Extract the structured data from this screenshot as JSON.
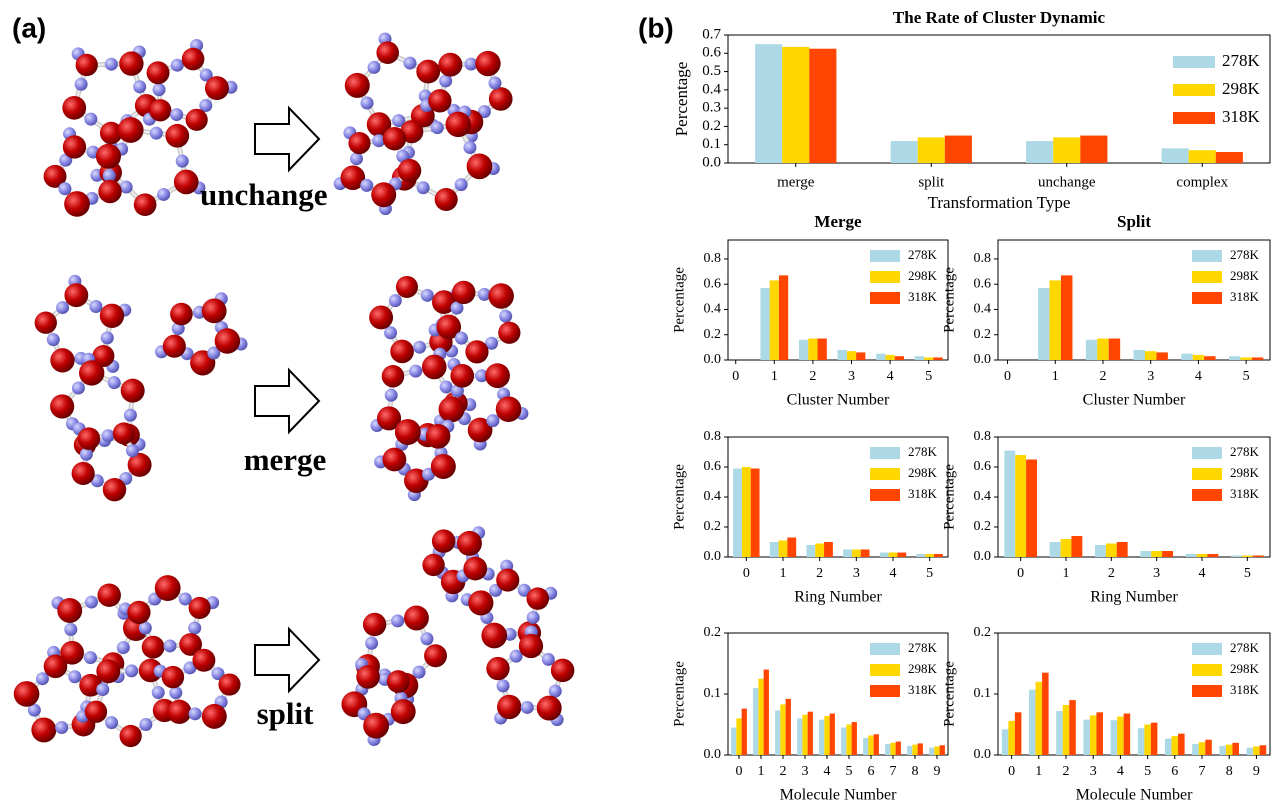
{
  "panel_a": {
    "label": "(a)",
    "transitions": [
      "unchange",
      "merge",
      "split"
    ]
  },
  "panel_b_label": "(b)",
  "chart_data": [
    {
      "type": "bar",
      "title": "The Rate of Cluster Dynamic",
      "xlabel": "Transformation Type",
      "ylabel": "Percentage",
      "categories": [
        "merge",
        "split",
        "unchange",
        "complex"
      ],
      "series": [
        {
          "name": "278K",
          "color": "#add8e6",
          "values": [
            0.65,
            0.12,
            0.12,
            0.08
          ]
        },
        {
          "name": "298K",
          "color": "#ffd700",
          "values": [
            0.635,
            0.14,
            0.14,
            0.07
          ]
        },
        {
          "name": "318K",
          "color": "#ff4500",
          "values": [
            0.625,
            0.15,
            0.15,
            0.06
          ]
        }
      ],
      "ylim": [
        0,
        0.7
      ],
      "yticks": [
        {
          "value": 0,
          "label": "0.0"
        },
        0.1,
        0.2,
        0.3,
        0.4,
        0.5,
        0.6,
        0.7
      ],
      "legend": "upper right"
    },
    {
      "type": "bar",
      "title": "Merge",
      "xlabel": "Cluster Number",
      "ylabel": "Percentage",
      "x": [
        1,
        2,
        3,
        4,
        5
      ],
      "series": [
        {
          "name": "278K",
          "color": "#add8e6",
          "values": [
            0.57,
            0.16,
            0.08,
            0.05,
            0.03
          ]
        },
        {
          "name": "298K",
          "color": "#ffd700",
          "values": [
            0.63,
            0.17,
            0.07,
            0.04,
            0.02
          ]
        },
        {
          "name": "318K",
          "color": "#ff4500",
          "values": [
            0.67,
            0.17,
            0.06,
            0.03,
            0.02
          ]
        }
      ],
      "xlim": [
        -0.2,
        5.5
      ],
      "xticks": [
        0,
        1,
        2,
        3,
        4,
        5
      ],
      "ylim": [
        0,
        0.95
      ],
      "yticks": [
        {
          "value": 0,
          "label": "0.0"
        },
        0.2,
        0.4,
        0.6,
        0.8
      ],
      "legend": "upper right"
    },
    {
      "type": "bar",
      "title": "Split",
      "xlabel": "Cluster Number",
      "ylabel": "Percentage",
      "x": [
        1,
        2,
        3,
        4,
        5
      ],
      "series": [
        {
          "name": "278K",
          "color": "#add8e6",
          "values": [
            0.57,
            0.16,
            0.08,
            0.05,
            0.03
          ]
        },
        {
          "name": "298K",
          "color": "#ffd700",
          "values": [
            0.63,
            0.17,
            0.07,
            0.04,
            0.02
          ]
        },
        {
          "name": "318K",
          "color": "#ff4500",
          "values": [
            0.67,
            0.17,
            0.06,
            0.03,
            0.02
          ]
        }
      ],
      "xlim": [
        -0.2,
        5.5
      ],
      "xticks": [
        0,
        1,
        2,
        3,
        4,
        5
      ],
      "ylim": [
        0,
        0.95
      ],
      "yticks": [
        {
          "value": 0,
          "label": "0.0"
        },
        0.2,
        0.4,
        0.6,
        0.8
      ],
      "legend": "upper right"
    },
    {
      "type": "bar",
      "xlabel": "Ring Number",
      "ylabel": "Percentage",
      "x": [
        0,
        1,
        2,
        3,
        4,
        5
      ],
      "series": [
        {
          "name": "278K",
          "color": "#add8e6",
          "values": [
            0.59,
            0.1,
            0.08,
            0.05,
            0.03,
            0.02
          ]
        },
        {
          "name": "298K",
          "color": "#ffd700",
          "values": [
            0.6,
            0.11,
            0.09,
            0.05,
            0.03,
            0.02
          ]
        },
        {
          "name": "318K",
          "color": "#ff4500",
          "values": [
            0.59,
            0.13,
            0.1,
            0.05,
            0.03,
            0.02
          ]
        }
      ],
      "xlim": [
        -0.5,
        5.5
      ],
      "xticks": [
        0,
        1,
        2,
        3,
        4,
        5
      ],
      "ylim": [
        0,
        0.8
      ],
      "yticks": [
        {
          "value": 0,
          "label": "0.0"
        },
        0.2,
        0.4,
        0.6,
        0.8
      ],
      "legend": "upper right"
    },
    {
      "type": "bar",
      "xlabel": "Ring Number",
      "ylabel": "Percentage",
      "x": [
        0,
        1,
        2,
        3,
        4,
        5
      ],
      "series": [
        {
          "name": "278K",
          "color": "#add8e6",
          "values": [
            0.71,
            0.1,
            0.08,
            0.04,
            0.02,
            0.01
          ]
        },
        {
          "name": "298K",
          "color": "#ffd700",
          "values": [
            0.68,
            0.12,
            0.09,
            0.04,
            0.02,
            0.01
          ]
        },
        {
          "name": "318K",
          "color": "#ff4500",
          "values": [
            0.65,
            0.14,
            0.1,
            0.04,
            0.02,
            0.01
          ]
        }
      ],
      "xlim": [
        -0.5,
        5.5
      ],
      "xticks": [
        0,
        1,
        2,
        3,
        4,
        5
      ],
      "ylim": [
        0,
        0.8
      ],
      "yticks": [
        {
          "value": 0,
          "label": "0.0"
        },
        0.2,
        0.4,
        0.6,
        0.8
      ],
      "legend": "upper right"
    },
    {
      "type": "bar",
      "xlabel": "Molecule Number",
      "ylabel": "Percentage",
      "x": [
        0,
        1,
        2,
        3,
        4,
        5,
        6,
        7,
        8,
        9
      ],
      "series": [
        {
          "name": "278K",
          "color": "#add8e6",
          "values": [
            0.045,
            0.11,
            0.073,
            0.06,
            0.058,
            0.045,
            0.028,
            0.018,
            0.015,
            0.012
          ]
        },
        {
          "name": "298K",
          "color": "#ffd700",
          "values": [
            0.06,
            0.125,
            0.083,
            0.066,
            0.064,
            0.05,
            0.032,
            0.02,
            0.017,
            0.014
          ]
        },
        {
          "name": "318K",
          "color": "#ff4500",
          "values": [
            0.076,
            0.14,
            0.092,
            0.071,
            0.068,
            0.054,
            0.034,
            0.022,
            0.019,
            0.016
          ]
        }
      ],
      "xlim": [
        -0.5,
        9.5
      ],
      "xticks": [
        0,
        1,
        2,
        3,
        4,
        5,
        6,
        7,
        8,
        9
      ],
      "ylim": [
        0,
        0.2
      ],
      "yticks": [
        {
          "value": 0,
          "label": "0.0"
        },
        0.1,
        0.2
      ],
      "legend": "upper right"
    },
    {
      "type": "bar",
      "xlabel": "Molecule Number",
      "ylabel": "Percentage",
      "x": [
        0,
        1,
        2,
        3,
        4,
        5,
        6,
        7,
        8,
        9
      ],
      "series": [
        {
          "name": "278K",
          "color": "#add8e6",
          "values": [
            0.042,
            0.107,
            0.072,
            0.058,
            0.057,
            0.044,
            0.027,
            0.018,
            0.015,
            0.012
          ]
        },
        {
          "name": "298K",
          "color": "#ffd700",
          "values": [
            0.056,
            0.12,
            0.082,
            0.065,
            0.063,
            0.05,
            0.031,
            0.021,
            0.017,
            0.014
          ]
        },
        {
          "name": "318K",
          "color": "#ff4500",
          "values": [
            0.07,
            0.135,
            0.09,
            0.07,
            0.068,
            0.053,
            0.035,
            0.025,
            0.02,
            0.016
          ]
        }
      ],
      "xlim": [
        -0.5,
        9.5
      ],
      "xticks": [
        0,
        1,
        2,
        3,
        4,
        5,
        6,
        7,
        8,
        9
      ],
      "ylim": [
        0,
        0.2
      ],
      "yticks": [
        {
          "value": 0,
          "label": "0.0"
        },
        0.1,
        0.2
      ],
      "legend": "upper right"
    }
  ]
}
